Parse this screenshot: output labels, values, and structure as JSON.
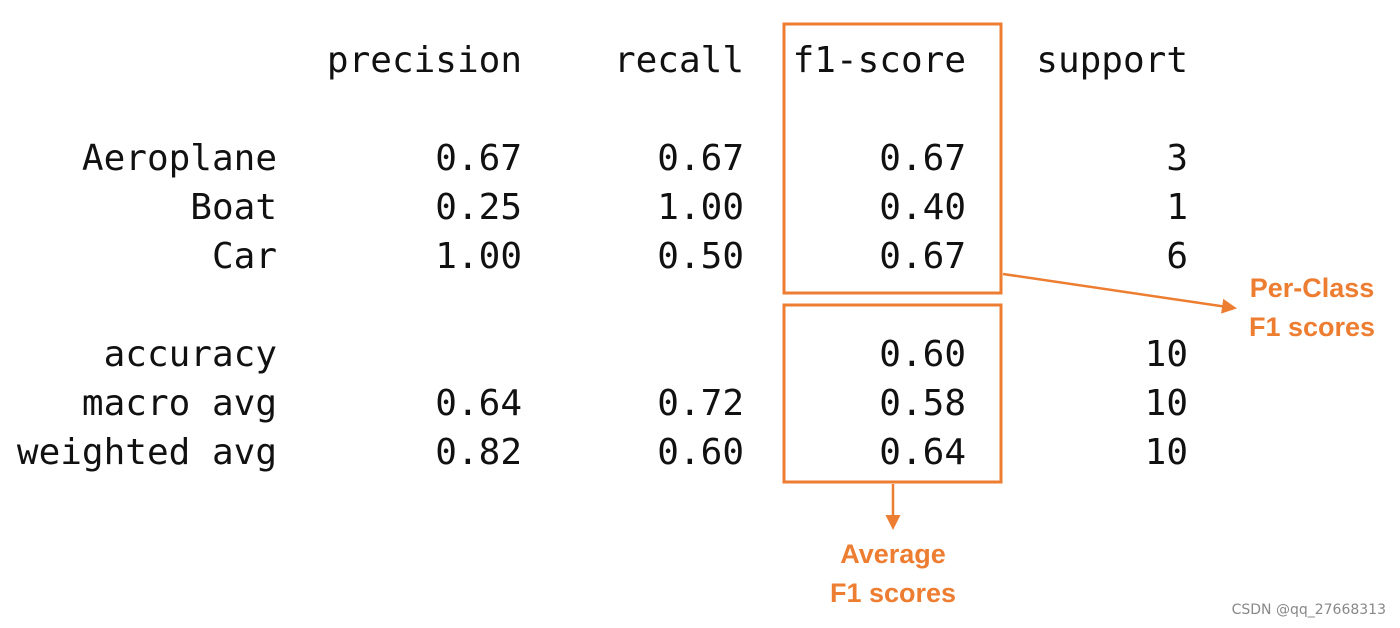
{
  "table": {
    "columns": [
      "precision",
      "recall",
      "f1-score",
      "support"
    ],
    "rows": [
      {
        "label": "Aeroplane",
        "cells": [
          "0.67",
          "0.67",
          "0.67",
          "3"
        ]
      },
      {
        "label": "Boat",
        "cells": [
          "0.25",
          "1.00",
          "0.40",
          "1"
        ]
      },
      {
        "label": "Car",
        "cells": [
          "1.00",
          "0.50",
          "0.67",
          "6"
        ]
      },
      {
        "label": "accuracy",
        "cells": [
          null,
          null,
          "0.60",
          "10"
        ]
      },
      {
        "label": "macro avg",
        "cells": [
          "0.64",
          "0.72",
          "0.58",
          "10"
        ]
      },
      {
        "label": "weighted avg",
        "cells": [
          "0.82",
          "0.60",
          "0.64",
          "10"
        ]
      }
    ]
  },
  "annotations": {
    "per_class": [
      "Per-Class",
      "F1 scores"
    ],
    "average": [
      "Average",
      "F1 scores"
    ]
  },
  "watermark": "CSDN @qq_27668313"
}
